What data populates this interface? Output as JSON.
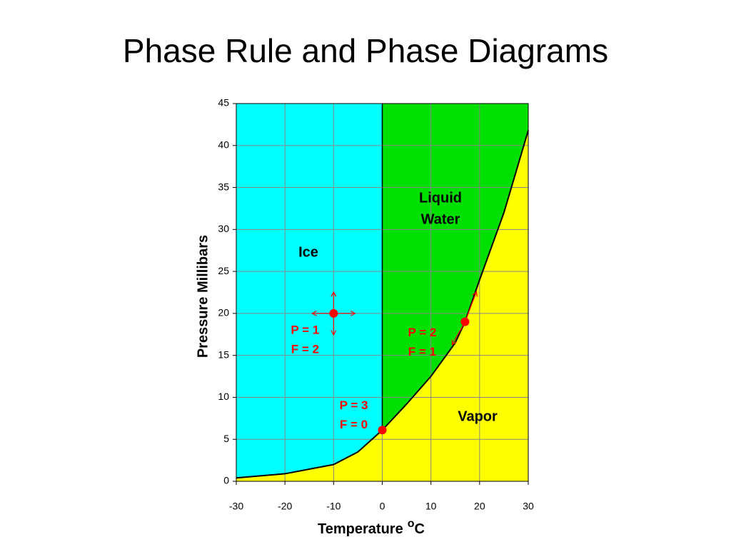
{
  "title": "Phase Rule and Phase Diagrams",
  "chart_data": {
    "type": "line",
    "x_label": {
      "text": "Temperature",
      "sup": "o",
      "unit": "C"
    },
    "y_label": "Pressure Millibars",
    "xlim": [
      -30,
      30
    ],
    "xticks": [
      -30,
      -20,
      -10,
      0,
      10,
      20,
      30
    ],
    "ylim": [
      0,
      45
    ],
    "yticks": [
      0,
      5,
      10,
      15,
      20,
      25,
      30,
      35,
      40,
      45
    ],
    "grid": true,
    "x": [
      -30,
      -20,
      -10,
      -5,
      0,
      5,
      10,
      15,
      17,
      20,
      25,
      30
    ],
    "series": [
      {
        "color": "#000000",
        "values": [
          0.4,
          0.9,
          2.0,
          3.5,
          6.1,
          9.2,
          12.5,
          16.5,
          19,
          24,
          32,
          41.8
        ]
      }
    ],
    "regions": [
      {
        "label": [
          "Ice"
        ],
        "color": "#00ffff"
      },
      {
        "label": [
          "Liquid",
          "Water"
        ],
        "color": "#00e000"
      },
      {
        "label": [
          "Vapor"
        ],
        "color": "#ffff00"
      }
    ],
    "points": [
      {
        "x": -10,
        "y": 20,
        "labels": [
          "P = 1",
          "F = 2"
        ]
      },
      {
        "x": 17,
        "y": 19,
        "labels": [
          "P = 2",
          "F = 1"
        ]
      },
      {
        "x": 0,
        "y": 6.1,
        "labels": [
          "P = 3",
          "F = 0"
        ]
      }
    ],
    "point_color": "#ff0000"
  }
}
